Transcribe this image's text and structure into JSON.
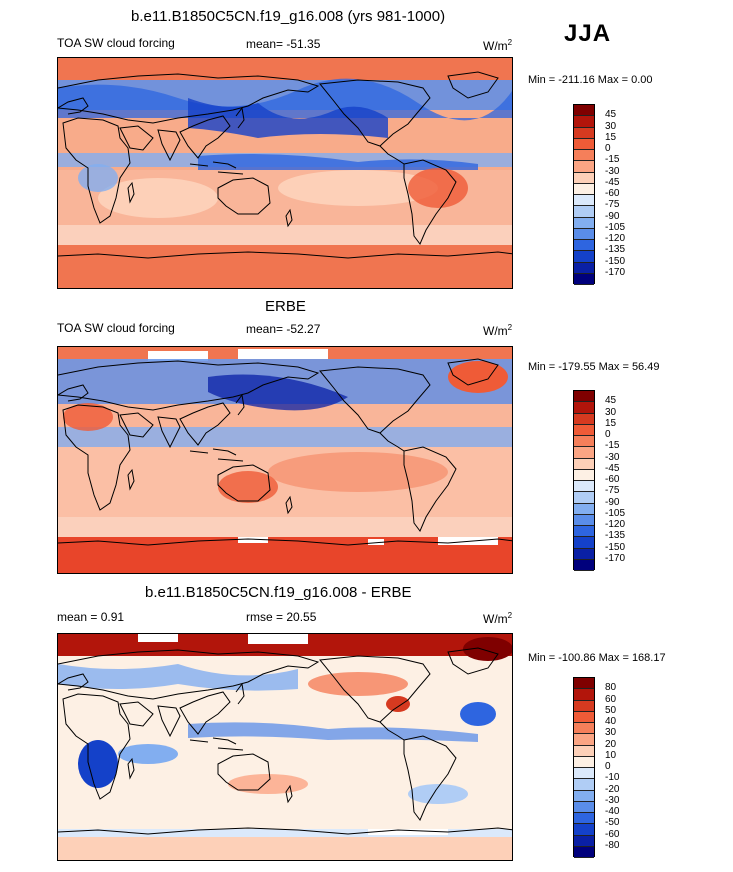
{
  "season": "JJA",
  "panels": [
    {
      "title": "b.e11.B1850C5CN.f19_g16.008 (yrs 981-1000)",
      "left_label": "TOA SW cloud forcing",
      "center_label": "mean= -51.35",
      "units_base": "W/m",
      "units_exp": "2",
      "minmax": "Min = -211.16 Max =   0.00",
      "colorbar": {
        "labels": [
          "45",
          "30",
          "15",
          "0",
          "-15",
          "-30",
          "-45",
          "-60",
          "-75",
          "-90",
          "-105",
          "-120",
          "-135",
          "-150",
          "-170"
        ],
        "colors": [
          "#7f0000",
          "#b2150b",
          "#d63a20",
          "#ef5b37",
          "#f57f5a",
          "#fba584",
          "#fdd0b8",
          "#fdf0e4",
          "#dbe9fb",
          "#b0cdf5",
          "#82aef0",
          "#5a8de9",
          "#2e65e0",
          "#1441c9",
          "#0a20a5",
          "#00007c"
        ]
      }
    },
    {
      "title": "ERBE",
      "left_label": "TOA SW cloud forcing",
      "center_label": "mean= -52.27",
      "units_base": "W/m",
      "units_exp": "2",
      "minmax": "Min = -179.55 Max =  56.49",
      "colorbar": {
        "labels": [
          "45",
          "30",
          "15",
          "0",
          "-15",
          "-30",
          "-45",
          "-60",
          "-75",
          "-90",
          "-105",
          "-120",
          "-135",
          "-150",
          "-170"
        ],
        "colors": [
          "#7f0000",
          "#b2150b",
          "#d63a20",
          "#ef5b37",
          "#f57f5a",
          "#fba584",
          "#fdd0b8",
          "#fdf0e4",
          "#dbe9fb",
          "#b0cdf5",
          "#82aef0",
          "#5a8de9",
          "#2e65e0",
          "#1441c9",
          "#0a20a5",
          "#00007c"
        ]
      }
    },
    {
      "title": "b.e11.B1850C5CN.f19_g16.008 - ERBE",
      "left_label": "mean =   0.91",
      "center_label": "rmse =  20.55",
      "units_base": "W/m",
      "units_exp": "2",
      "minmax": "Min = -100.86 Max = 168.17",
      "colorbar": {
        "labels": [
          "80",
          "60",
          "50",
          "40",
          "30",
          "20",
          "10",
          "0",
          "-10",
          "-20",
          "-30",
          "-40",
          "-50",
          "-60",
          "-80"
        ],
        "colors": [
          "#7f0000",
          "#b2150b",
          "#d63a20",
          "#ef5b37",
          "#f57f5a",
          "#fba584",
          "#fdd0b8",
          "#fdf0e4",
          "#dbe9fb",
          "#b0cdf5",
          "#82aef0",
          "#5a8de9",
          "#2e65e0",
          "#1441c9",
          "#0a20a5",
          "#00007c"
        ]
      }
    }
  ]
}
